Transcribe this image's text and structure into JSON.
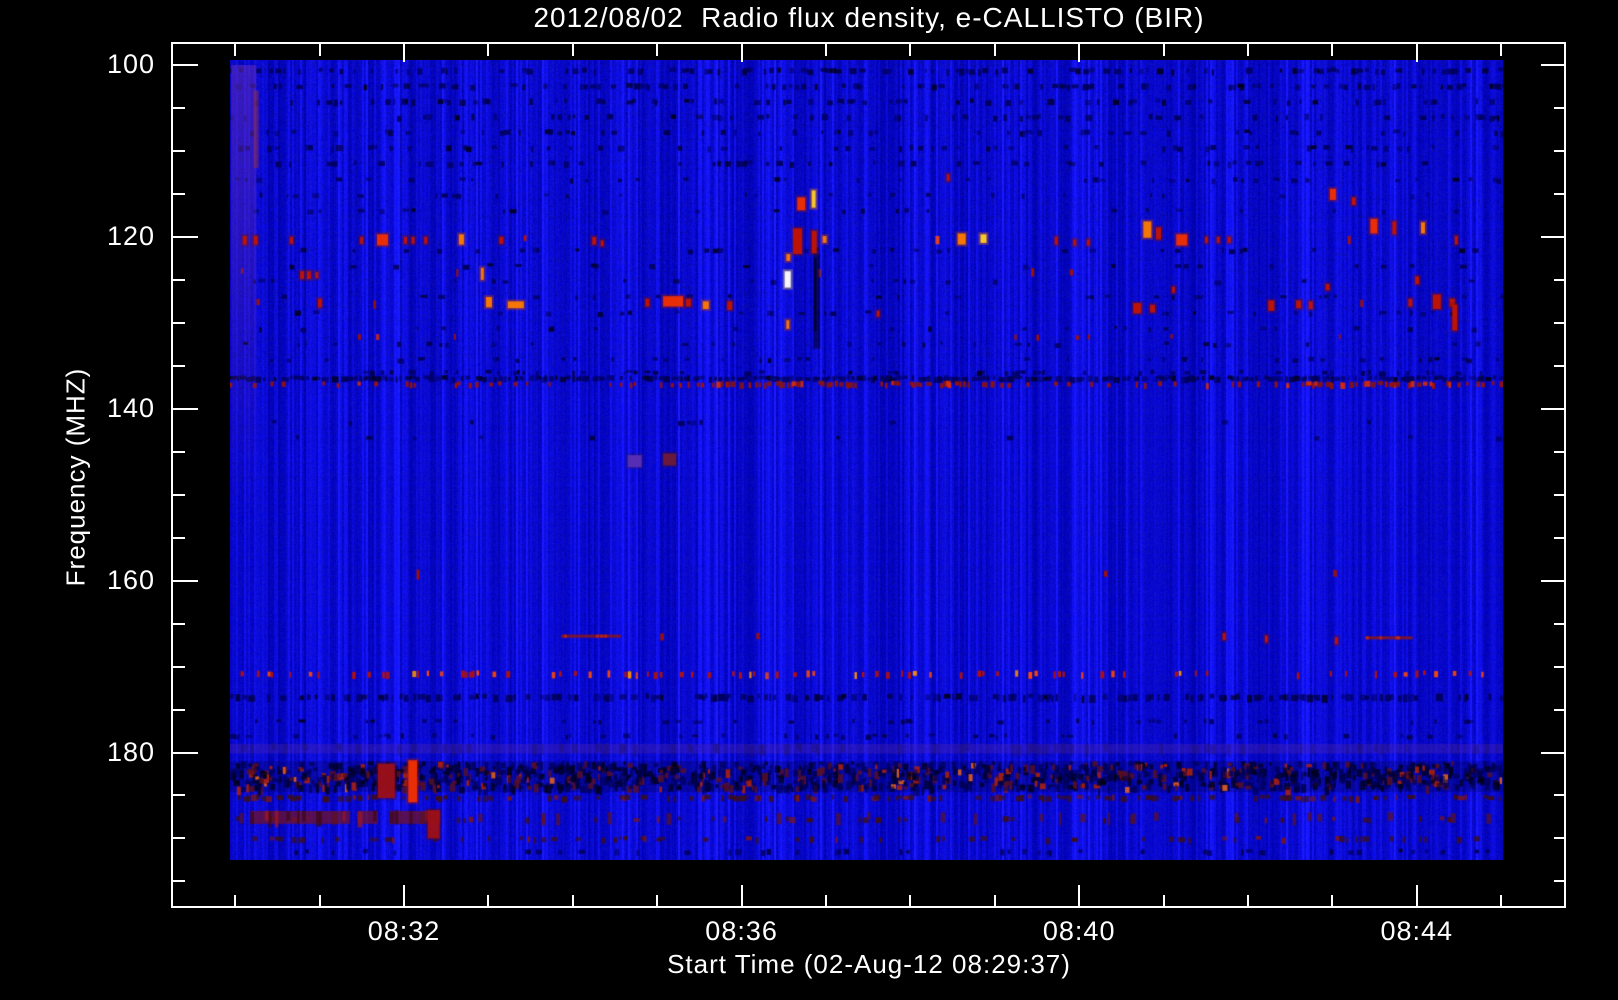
{
  "chart_data": {
    "type": "heatmap",
    "title": "2012/08/02  Radio flux density, e-CALLISTO (BIR)",
    "xlabel": "Start Time (02-Aug-12 08:29:37)",
    "ylabel": "Frequency (MHZ)",
    "instrument": "e-CALLISTO (BIR)",
    "date": "2012/08/02",
    "start_time": "08:29:37",
    "x_axis": {
      "major": [
        {
          "label": "08:32",
          "t": 3
        },
        {
          "label": "08:36",
          "t": 7
        },
        {
          "label": "08:40",
          "t": 11
        },
        {
          "label": "08:44",
          "t": 15
        }
      ],
      "minor_t": [
        1,
        2,
        4,
        5,
        6,
        8,
        9,
        10,
        12,
        13,
        14,
        16
      ],
      "t_range_min": [
        0.25,
        16.77
      ],
      "units": "minutes after 08:29:00"
    },
    "y_axis": {
      "major": [
        {
          "label": "100",
          "f": 100
        },
        {
          "label": "120",
          "f": 120
        },
        {
          "label": "140",
          "f": 140
        },
        {
          "label": "160",
          "f": 160
        },
        {
          "label": "180",
          "f": 180
        }
      ],
      "minor_f": [
        105,
        110,
        115,
        125,
        130,
        135,
        145,
        150,
        155,
        165,
        170,
        175,
        185,
        190,
        195
      ],
      "f_range_mhz": [
        97.4,
        198.0
      ],
      "units": "MHz"
    },
    "image_extent": {
      "t_min": [
        0.94,
        16.02
      ],
      "f_mhz": [
        99.6,
        192.6
      ]
    },
    "palette": {
      "background_blue": "#1212dd",
      "dark_navy": "#000050",
      "black_dash": "#000014",
      "red": "#c41400",
      "bright_red": "#f23000",
      "orange": "#ff7b00",
      "yellow": "#ffd028",
      "white": "#ffffff",
      "maroon": "#9c1018",
      "purple": "#5a30b4"
    },
    "features": {
      "dark_rows": [
        [
          100.7,
          0.3,
          5,
          "n"
        ],
        [
          102.5,
          0.28,
          5,
          "n"
        ],
        [
          104.3,
          0.26,
          5,
          "n"
        ],
        [
          106.1,
          0.26,
          5,
          "n"
        ],
        [
          107.9,
          0.24,
          5,
          "n"
        ],
        [
          109.7,
          0.22,
          5,
          "n"
        ],
        [
          111.5,
          0.2,
          5,
          "n"
        ],
        [
          113.4,
          0.16,
          4,
          "n"
        ],
        [
          115.2,
          0.12,
          4,
          "n"
        ],
        [
          117.0,
          0.1,
          4,
          "n"
        ],
        [
          121.6,
          0.1,
          4,
          "n"
        ],
        [
          123.4,
          0.09,
          4,
          "n"
        ],
        [
          125.2,
          0.08,
          4,
          "n"
        ],
        [
          127.0,
          0.09,
          4,
          "n"
        ],
        [
          128.9,
          0.09,
          4,
          "n"
        ],
        [
          130.7,
          0.11,
          4,
          "n"
        ],
        [
          132.5,
          0.11,
          4,
          "n"
        ],
        [
          134.3,
          0.13,
          4,
          "n"
        ],
        [
          135.8,
          0.22,
          4,
          "n"
        ],
        [
          136.5,
          0.9,
          5,
          "n"
        ],
        [
          141.6,
          0.05,
          4,
          "n"
        ],
        [
          143.4,
          0.04,
          4,
          "n"
        ],
        [
          173.6,
          0.55,
          6,
          "n"
        ],
        [
          176.4,
          0.14,
          4,
          "n"
        ],
        [
          178.1,
          0.12,
          4,
          "n"
        ],
        [
          185.3,
          0.45,
          5,
          "red"
        ],
        [
          187.8,
          0.1,
          5,
          "red"
        ],
        [
          190.1,
          0.2,
          5,
          "red"
        ],
        [
          191.6,
          0.16,
          5,
          "n"
        ]
      ],
      "red_rows": [
        [
          120.2,
          0.02,
          7,
          1
        ],
        [
          124.1,
          0.011,
          7,
          0
        ],
        [
          127.7,
          0.013,
          7,
          0
        ],
        [
          131.7,
          0.024,
          5,
          0
        ],
        [
          159.2,
          0.014,
          8,
          0
        ],
        [
          166.5,
          0.004,
          6,
          0
        ],
        [
          170.9,
          0.3,
          6,
          1
        ],
        [
          137.2,
          0.35,
          5,
          0
        ]
      ],
      "line_137_hot_ranges": [
        [
          6.7,
          10.0
        ],
        [
          13.6,
          15.4
        ]
      ],
      "bands": [
        {
          "f1": 179.0,
          "f2": 180.1,
          "type": "purple"
        },
        {
          "f1": 181.0,
          "f2": 184.6,
          "type": "speckle"
        },
        {
          "f1": 186.8,
          "f2": 188.3,
          "type": "maroon",
          "t_ranges": [
            [
              1.18,
              2.36
            ],
            [
              2.45,
              2.69
            ],
            [
              2.83,
              3.43
            ]
          ]
        }
      ],
      "columns": [
        {
          "t1": 0.95,
          "t2": 1.25,
          "f1": 100,
          "f2": 153,
          "type": "purple"
        },
        {
          "t1": 7.85,
          "t2": 7.93,
          "f1": 121.9,
          "f2": 133.0,
          "type": "dark"
        }
      ],
      "segments": [
        {
          "t1": 4.86,
          "t2": 5.57,
          "f": 166.4
        },
        {
          "t1": 14.39,
          "t2": 14.95,
          "f": 166.6
        }
      ],
      "hotspots": [
        [
          1.09,
          119.9,
          2.8,
          1.0,
          "r"
        ],
        [
          1.22,
          119.9,
          2.8,
          1.0,
          "r"
        ],
        [
          1.65,
          120.0,
          2.1,
          0.8,
          "r"
        ],
        [
          2.48,
          120.0,
          2.1,
          0.8,
          "r"
        ],
        [
          2.68,
          119.7,
          7.8,
          1.3,
          "R"
        ],
        [
          3.0,
          120.0,
          2.1,
          0.8,
          "r"
        ],
        [
          3.09,
          120.0,
          2.1,
          0.8,
          "r"
        ],
        [
          3.24,
          120.0,
          2.1,
          0.8,
          "r"
        ],
        [
          3.65,
          119.7,
          3.6,
          1.2,
          "o"
        ],
        [
          4.13,
          120.0,
          2.8,
          0.8,
          "r"
        ],
        [
          5.23,
          120.0,
          2.8,
          0.9,
          "r"
        ],
        [
          5.33,
          120.4,
          2.1,
          0.7,
          "r"
        ],
        [
          1.77,
          124.0,
          2.8,
          0.9,
          "r"
        ],
        [
          1.85,
          124.0,
          2.8,
          0.9,
          "r"
        ],
        [
          1.95,
          124.1,
          2.1,
          0.7,
          "r"
        ],
        [
          3.91,
          123.6,
          2.1,
          1.4,
          "o"
        ],
        [
          1.98,
          127.2,
          2.8,
          1.0,
          "r"
        ],
        [
          3.97,
          127.0,
          4.3,
          1.2,
          "o"
        ],
        [
          4.23,
          127.5,
          11.4,
          0.8,
          "o"
        ],
        [
          5.86,
          127.2,
          2.8,
          0.9,
          "r"
        ],
        [
          6.07,
          126.9,
          14.2,
          1.2,
          "R"
        ],
        [
          6.34,
          127.2,
          3.6,
          0.9,
          "r"
        ],
        [
          6.54,
          127.5,
          4.3,
          0.9,
          "o"
        ],
        [
          6.83,
          127.5,
          3.6,
          1.0,
          "r"
        ],
        [
          7.66,
          115.4,
          5.7,
          1.5,
          "R"
        ],
        [
          7.83,
          114.6,
          2.8,
          2.0,
          "y"
        ],
        [
          7.61,
          119.0,
          6.4,
          3.0,
          "r"
        ],
        [
          7.83,
          119.3,
          3.6,
          2.6,
          "r"
        ],
        [
          7.96,
          119.9,
          2.8,
          0.8,
          "o"
        ],
        [
          7.53,
          122.0,
          2.8,
          0.8,
          "o"
        ],
        [
          7.51,
          124.0,
          4.3,
          1.9,
          "w"
        ],
        [
          7.53,
          129.7,
          2.1,
          1.0,
          "o"
        ],
        [
          8.6,
          128.6,
          2.1,
          0.7,
          "r"
        ],
        [
          9.43,
          112.7,
          2.1,
          0.8,
          "r"
        ],
        [
          9.56,
          119.6,
          5.7,
          1.3,
          "o"
        ],
        [
          9.83,
          119.7,
          4.3,
          1.0,
          "y"
        ],
        [
          10.71,
          120.0,
          2.1,
          0.9,
          "r"
        ],
        [
          10.93,
          120.3,
          2.1,
          0.7,
          "r"
        ],
        [
          11.09,
          120.3,
          2.1,
          0.7,
          "r"
        ],
        [
          11.76,
          118.2,
          5.7,
          1.9,
          "o"
        ],
        [
          11.91,
          118.9,
          3.6,
          1.4,
          "r"
        ],
        [
          12.15,
          119.7,
          7.8,
          1.3,
          "R"
        ],
        [
          12.49,
          120.0,
          2.1,
          0.7,
          "r"
        ],
        [
          12.63,
          120.0,
          2.1,
          0.7,
          "r"
        ],
        [
          12.76,
          120.0,
          2.1,
          0.7,
          "r"
        ],
        [
          11.64,
          127.7,
          5.7,
          1.2,
          "r"
        ],
        [
          11.84,
          127.9,
          3.6,
          0.9,
          "r"
        ],
        [
          12.1,
          125.8,
          2.1,
          0.7,
          "r"
        ],
        [
          13.24,
          127.4,
          4.3,
          1.2,
          "r"
        ],
        [
          13.57,
          127.4,
          3.6,
          0.9,
          "r"
        ],
        [
          13.72,
          127.5,
          2.8,
          0.9,
          "r"
        ],
        [
          13.92,
          125.5,
          2.8,
          0.7,
          "r"
        ],
        [
          13.97,
          114.4,
          4.3,
          1.3,
          "R"
        ],
        [
          14.23,
          115.4,
          2.8,
          0.9,
          "r"
        ],
        [
          14.45,
          117.9,
          5.0,
          1.7,
          "R"
        ],
        [
          14.71,
          118.2,
          2.8,
          1.5,
          "r"
        ],
        [
          15.05,
          118.3,
          2.8,
          1.3,
          "o"
        ],
        [
          15.45,
          119.9,
          2.1,
          1.0,
          "r"
        ],
        [
          14.9,
          127.2,
          2.8,
          0.9,
          "r"
        ],
        [
          15.19,
          126.7,
          5.7,
          1.7,
          "r"
        ],
        [
          15.39,
          127.2,
          3.6,
          0.9,
          "r"
        ],
        [
          14.98,
          124.6,
          2.8,
          0.9,
          "r"
        ],
        [
          15.42,
          127.9,
          3.6,
          3.0,
          "r"
        ],
        [
          12.7,
          166.1,
          2.1,
          0.8,
          "r"
        ],
        [
          13.2,
          166.4,
          2.1,
          0.8,
          "r"
        ],
        [
          14.03,
          166.6,
          2.1,
          0.8,
          "r"
        ],
        [
          5.65,
          145.4,
          10.0,
          1.4,
          "p"
        ],
        [
          6.07,
          145.2,
          9.2,
          1.4,
          "m"
        ],
        [
          2.69,
          181.3,
          12.1,
          4.0,
          "M"
        ],
        [
          3.05,
          180.9,
          6.4,
          4.9,
          "R"
        ],
        [
          3.28,
          186.7,
          8.5,
          3.3,
          "M"
        ]
      ]
    }
  }
}
